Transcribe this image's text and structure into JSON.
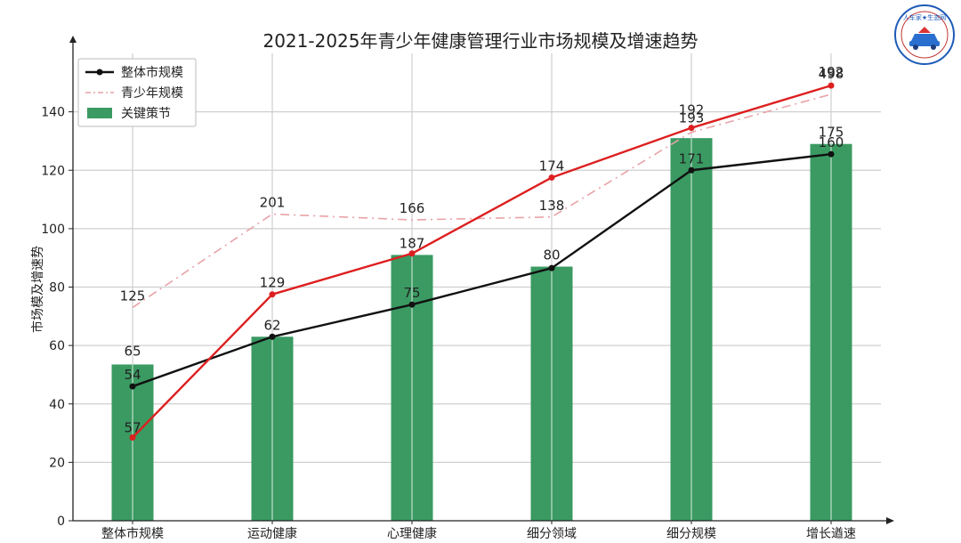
{
  "chart_data": {
    "type": "bar",
    "title": "2021-2025年青少年健康管理行业市场规模及增速趋势",
    "ylabel": "市场模及增速势",
    "xlabel": "",
    "categories": [
      "整体市规模",
      "运动健康",
      "心理健康",
      "细分领域",
      "细分规模",
      "增长遒速"
    ],
    "ylim": [
      0,
      160
    ],
    "yticks": [
      0,
      20,
      40,
      60,
      80,
      100,
      120,
      140
    ],
    "grid": true,
    "legend_position": "top-left",
    "bars": {
      "name": "关键策节",
      "values": [
        53.5,
        63,
        91,
        87,
        131,
        129
      ],
      "labels": [
        "65",
        "",
        "187",
        "80",
        "",
        "175"
      ],
      "color": "#3a9a62"
    },
    "series": [
      {
        "name": "整体市规模",
        "style": "solid-marker",
        "color": "#111111",
        "values": [
          46,
          63,
          74,
          86.5,
          120,
          125.5
        ],
        "labels": [
          "54",
          "62",
          "75",
          "",
          "171",
          "160"
        ]
      },
      {
        "name": "青少年规模",
        "style": "dashdot",
        "color": "#e8a3a8",
        "values": [
          73,
          105,
          103,
          104,
          133,
          146
        ],
        "labels": [
          "125",
          "201",
          "166",
          "138",
          "192",
          "192"
        ]
      },
      {
        "name": "",
        "style": "solid-marker",
        "color": "#dd1f1f",
        "values": [
          28.5,
          77.5,
          91.5,
          117.5,
          134.5,
          149
        ],
        "labels": [
          "57",
          "129",
          "",
          "174",
          "193",
          "498"
        ]
      }
    ]
  },
  "logo": {
    "text": "人车家★生态网"
  }
}
